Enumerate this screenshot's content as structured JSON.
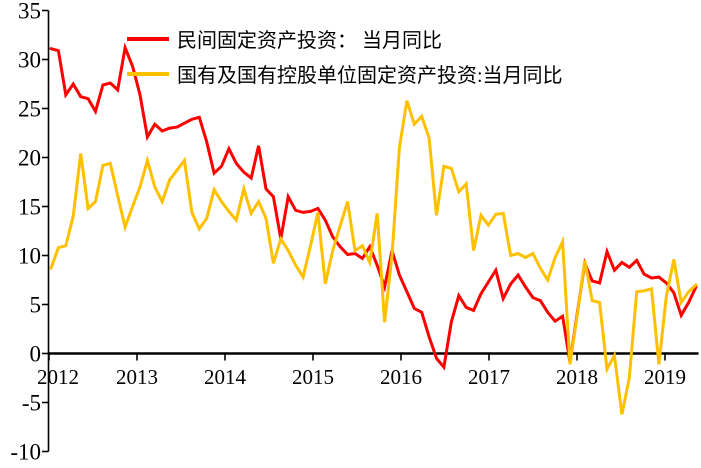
{
  "background": "#ffffff",
  "colors": {
    "private_series": "#fe0000",
    "state_series": "#ffc000",
    "axis": "#000000",
    "tick_label": "#000000"
  },
  "legend": {
    "position": "top-left-inside"
  },
  "chart_data": {
    "type": "line",
    "title": "",
    "xlabel": "",
    "ylabel": "",
    "grid": false,
    "ylim": [
      -10,
      35
    ],
    "y_ticks": [
      -10,
      -5,
      0,
      5,
      10,
      15,
      20,
      25,
      30,
      35
    ],
    "x_tick_labels": [
      "2012",
      "2013",
      "2014",
      "2015",
      "2016",
      "2017",
      "2018",
      "2019"
    ],
    "x": [
      "2012-02",
      "2012-03",
      "2012-04",
      "2012-05",
      "2012-06",
      "2012-07",
      "2012-08",
      "2012-09",
      "2012-10",
      "2012-11",
      "2012-12",
      "2013-01",
      "2013-02",
      "2013-03",
      "2013-04",
      "2013-05",
      "2013-06",
      "2013-07",
      "2013-08",
      "2013-09",
      "2013-10",
      "2013-11",
      "2013-12",
      "2014-01",
      "2014-02",
      "2014-03",
      "2014-04",
      "2014-05",
      "2014-06",
      "2014-07",
      "2014-08",
      "2014-09",
      "2014-10",
      "2014-11",
      "2014-12",
      "2015-01",
      "2015-02",
      "2015-03",
      "2015-04",
      "2015-05",
      "2015-06",
      "2015-07",
      "2015-08",
      "2015-09",
      "2015-10",
      "2015-11",
      "2015-12",
      "2016-01",
      "2016-02",
      "2016-03",
      "2016-04",
      "2016-05",
      "2016-06",
      "2016-07",
      "2016-08",
      "2016-09",
      "2016-10",
      "2016-11",
      "2016-12",
      "2017-01",
      "2017-02",
      "2017-03",
      "2017-04",
      "2017-05",
      "2017-06",
      "2017-07",
      "2017-08",
      "2017-09",
      "2017-10",
      "2017-11",
      "2017-12",
      "2018-01",
      "2018-02",
      "2018-03",
      "2018-04",
      "2018-05",
      "2018-06",
      "2018-07",
      "2018-08",
      "2018-09",
      "2018-10",
      "2018-11",
      "2018-12",
      "2019-01",
      "2019-02",
      "2019-03",
      "2019-04",
      "2019-05"
    ],
    "series": [
      {
        "key": "private-fai",
        "name": "民间固定资产投资： 当月同比",
        "color": "#fe0000",
        "values": [
          31.1,
          30.9,
          26.4,
          27.5,
          26.2,
          26.0,
          24.7,
          27.4,
          27.6,
          26.9,
          31.2,
          29.3,
          26.4,
          22.1,
          23.4,
          22.7,
          23.0,
          23.1,
          23.5,
          23.9,
          24.1,
          21.6,
          18.4,
          19.1,
          20.9,
          19.4,
          18.5,
          17.9,
          21.2,
          16.8,
          16.0,
          11.7,
          16.0,
          14.6,
          14.4,
          14.5,
          14.8,
          13.6,
          11.9,
          10.9,
          10.1,
          10.2,
          9.7,
          10.9,
          9.0,
          6.8,
          10.5,
          8.0,
          6.3,
          4.6,
          4.2,
          1.7,
          -0.5,
          -1.4,
          3.2,
          5.9,
          4.7,
          4.4,
          6.1,
          7.3,
          8.5,
          5.6,
          7.1,
          8.0,
          6.8,
          5.7,
          5.4,
          4.2,
          3.3,
          3.8,
          -0.9,
          4.2,
          9.2,
          7.4,
          7.2,
          10.4,
          8.5,
          9.3,
          8.8,
          9.5,
          8.1,
          7.7,
          7.8,
          7.2,
          6.2,
          3.9,
          5.2,
          6.8
        ]
      },
      {
        "key": "state-fai",
        "name": "国有及国有控股单位固定资产投资:当月同比",
        "color": "#ffc000",
        "values": [
          8.7,
          10.8,
          11.0,
          14.0,
          20.4,
          14.8,
          15.5,
          19.2,
          19.4,
          16.1,
          12.9,
          15.0,
          17.0,
          19.7,
          17.0,
          15.5,
          17.7,
          18.7,
          19.7,
          14.4,
          12.7,
          13.8,
          16.7,
          15.5,
          14.5,
          13.6,
          16.8,
          14.3,
          15.5,
          13.8,
          9.2,
          11.7,
          10.5,
          9.0,
          7.8,
          11.0,
          14.4,
          7.1,
          10.5,
          13.0,
          15.5,
          10.5,
          11.0,
          9.3,
          14.3,
          3.2,
          10.0,
          21.0,
          25.8,
          23.4,
          24.2,
          22.0,
          14.1,
          19.1,
          18.9,
          16.5,
          17.3,
          10.5,
          14.1,
          13.1,
          14.2,
          14.3,
          10.0,
          10.2,
          9.8,
          10.2,
          8.7,
          7.5,
          9.8,
          11.4,
          -1.1,
          4.0,
          9.5,
          5.4,
          5.2,
          -1.6,
          -0.2,
          -6.2,
          -2.5,
          6.3,
          6.4,
          6.6,
          -1.1,
          5.8,
          9.6,
          5.2,
          6.3,
          7.0
        ]
      }
    ],
    "legend_position": "top-left-inside"
  }
}
